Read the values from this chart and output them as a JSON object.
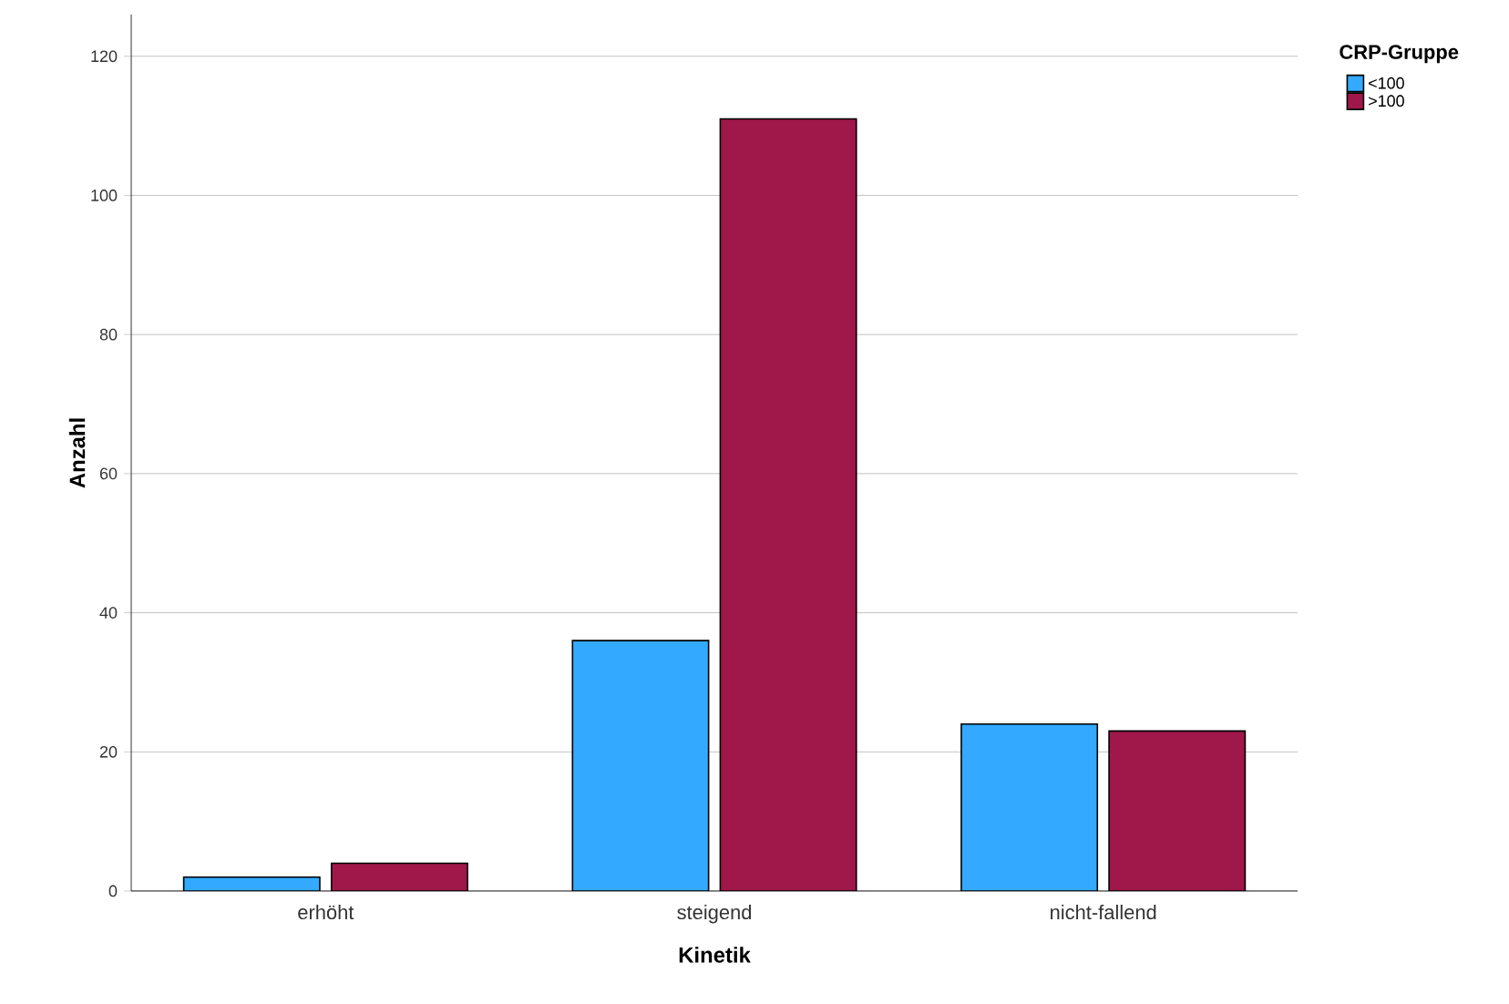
{
  "chart_data": {
    "type": "bar",
    "xlabel": "Kinetik",
    "ylabel": "Anzahl",
    "legend_title": "CRP-Gruppe",
    "categories": [
      "erhöht",
      "steigend",
      "nicht-fallend"
    ],
    "series": [
      {
        "name": "<100",
        "color": "#33aaff",
        "values": [
          2,
          36,
          24
        ]
      },
      {
        "name": ">100",
        "color": "#a0174a",
        "values": [
          4,
          111,
          23
        ]
      }
    ],
    "ylim": [
      0,
      126
    ],
    "yticks": [
      0,
      20,
      40,
      60,
      80,
      100,
      120
    ],
    "grid": "y",
    "legend": "top right"
  }
}
